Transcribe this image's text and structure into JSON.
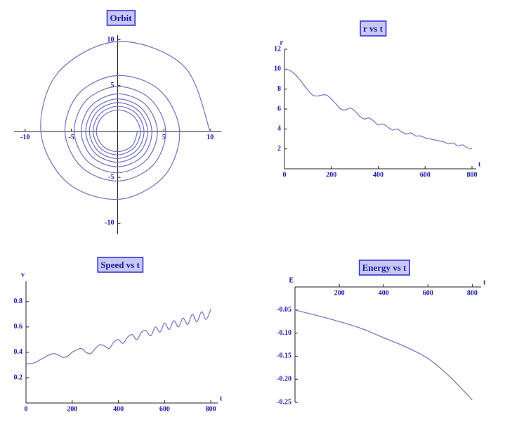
{
  "chart_data": [
    {
      "type": "line",
      "title": "Orbit",
      "color": "#6f6fc4",
      "x": [
        10,
        7.14,
        0,
        -6.43,
        -8.3,
        -5.51,
        0,
        4.95,
        6.7,
        4.52,
        0,
        -4.17,
        -5.7,
        -3.89,
        0,
        3.75,
        5.2,
        3.54,
        0,
        -3.39,
        -4.7,
        -3.25,
        0,
        3.11,
        4.3,
        2.97,
        0,
        -2.83,
        -3.95,
        -2.76,
        0,
        2.69,
        3.7,
        2.55,
        0,
        -2.47,
        -3.45,
        -2.4,
        0,
        2.33,
        3.25,
        2.26,
        0,
        -2.19,
        -3.05,
        -2.12,
        0,
        2.05,
        2.85,
        1.98,
        0,
        -1.91,
        -2.65,
        -1.84,
        0,
        1.77,
        2.45,
        1.7,
        0,
        -1.63,
        -2.3,
        -1.59,
        0,
        1.56,
        2.15
      ],
      "values": [
        0,
        7.14,
        9.8,
        6.43,
        0,
        -5.51,
        -7.4,
        -4.95,
        0,
        4.52,
        6.1,
        4.17,
        0,
        -3.89,
        -5.4,
        -3.75,
        0,
        3.54,
        4.9,
        3.39,
        0,
        -3.25,
        -4.5,
        -3.11,
        0,
        2.97,
        4.1,
        2.83,
        0,
        -2.76,
        -3.85,
        -2.69,
        0,
        2.55,
        3.55,
        2.47,
        0,
        -2.4,
        -3.35,
        -2.33,
        0,
        2.26,
        3.15,
        2.19,
        0,
        -2.12,
        -2.95,
        -2.05,
        0,
        1.98,
        2.75,
        1.91,
        0,
        -1.84,
        -2.55,
        -1.77,
        0,
        1.7,
        2.35,
        1.63,
        0,
        -1.59,
        -2.2,
        -1.56,
        0
      ],
      "xlim": [
        -11.2,
        11.2
      ],
      "ylim": [
        -11.2,
        10.5
      ],
      "xticks": [
        -10,
        -5,
        5,
        10
      ],
      "yticks": [
        -10,
        -5,
        5,
        10
      ]
    },
    {
      "type": "line",
      "title": "r vs t",
      "xlabel": "t",
      "ylabel": "r",
      "color": "#6f6fc4",
      "x": [
        0,
        20,
        40,
        60,
        80,
        100,
        120,
        140,
        160,
        180,
        200,
        220,
        240,
        260,
        280,
        300,
        320,
        340,
        360,
        380,
        400,
        420,
        440,
        460,
        480,
        500,
        520,
        540,
        560,
        580,
        600,
        620,
        640,
        660,
        680,
        700,
        720,
        740,
        760,
        780,
        800
      ],
      "values": [
        10,
        9.9,
        9.6,
        9.1,
        8.5,
        7.9,
        7.4,
        7.3,
        7.4,
        7.4,
        7.0,
        6.5,
        6.0,
        5.9,
        6.1,
        5.8,
        5.3,
        5.0,
        5.1,
        4.8,
        4.4,
        4.5,
        4.2,
        3.9,
        4.0,
        3.7,
        3.5,
        3.6,
        3.3,
        3.3,
        3.1,
        3.0,
        2.9,
        2.8,
        2.7,
        2.5,
        2.6,
        2.3,
        2.4,
        2.1,
        2.0
      ],
      "xlim": [
        0,
        818
      ],
      "ylim": [
        0,
        12
      ],
      "xticks": [
        0,
        200,
        400,
        600,
        800
      ],
      "yticks": [
        2,
        4,
        6,
        8,
        10,
        12
      ]
    },
    {
      "type": "line",
      "title": "Speed vs t",
      "xlabel": "t",
      "ylabel": "v",
      "color": "#6f6fc4",
      "x": [
        0,
        20,
        40,
        60,
        80,
        100,
        120,
        140,
        160,
        180,
        200,
        220,
        240,
        260,
        280,
        300,
        320,
        340,
        360,
        380,
        400,
        420,
        440,
        460,
        480,
        500,
        520,
        540,
        560,
        580,
        600,
        620,
        640,
        660,
        680,
        700,
        720,
        740,
        760,
        780,
        800
      ],
      "values": [
        0.31,
        0.31,
        0.32,
        0.34,
        0.36,
        0.38,
        0.39,
        0.38,
        0.36,
        0.37,
        0.4,
        0.42,
        0.43,
        0.4,
        0.39,
        0.43,
        0.46,
        0.45,
        0.43,
        0.48,
        0.5,
        0.47,
        0.52,
        0.54,
        0.5,
        0.56,
        0.57,
        0.53,
        0.6,
        0.56,
        0.63,
        0.58,
        0.65,
        0.6,
        0.67,
        0.62,
        0.7,
        0.64,
        0.72,
        0.66,
        0.74
      ],
      "xlim": [
        0,
        830
      ],
      "ylim": [
        0,
        0.96
      ],
      "xticks": [
        0,
        200,
        400,
        600,
        800
      ],
      "yticks": [
        0.2,
        0.4,
        0.6,
        0.8
      ]
    },
    {
      "type": "line",
      "title": "Energy vs t",
      "xlabel": "t",
      "ylabel": "E",
      "color": "#6f6fc4",
      "x": [
        0,
        100,
        200,
        300,
        400,
        500,
        600,
        700,
        800
      ],
      "values": [
        -0.05,
        -0.062,
        -0.075,
        -0.09,
        -0.11,
        -0.13,
        -0.155,
        -0.195,
        -0.245
      ],
      "xlim": [
        0,
        840
      ],
      "ylim": [
        -0.25,
        0
      ],
      "xticks": [
        200,
        400,
        600,
        800
      ],
      "yticks": [
        -0.05,
        {
          "value": -0.1,
          "label": "-0.10"
        },
        -0.15,
        {
          "value": -0.2,
          "label": "-0.20"
        },
        -0.25
      ]
    }
  ]
}
